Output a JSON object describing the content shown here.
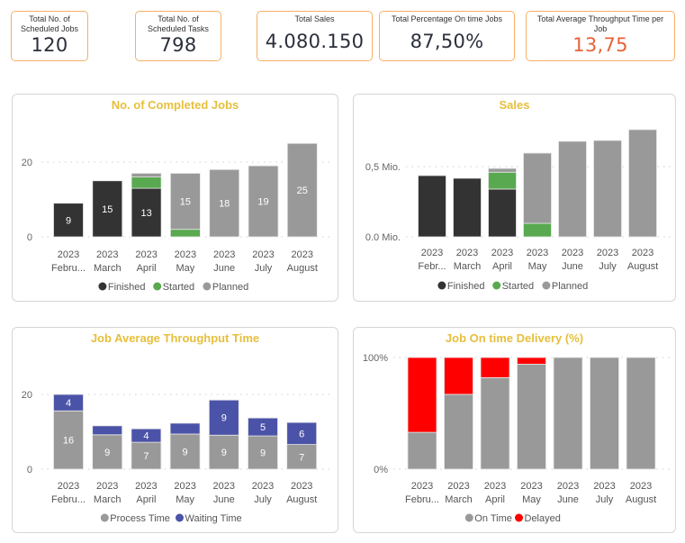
{
  "colors": {
    "accent_title": "#e6bf3c",
    "kpi_border": "#f5b065",
    "kpi_highlight": "#e8623a",
    "finished": "#333333",
    "started": "#58a94f",
    "planned": "#999999",
    "waiting": "#4b53a8",
    "delayed": "#ff0000"
  },
  "kpis": [
    {
      "label": "Total No. of Scheduled Jobs",
      "value": "120"
    },
    {
      "label": "Total No. of Scheduled Tasks",
      "value": "798"
    },
    {
      "label": "Total Sales",
      "value": "4.080.150"
    },
    {
      "label": "Total Percentage On time Jobs",
      "value": "87,50%"
    },
    {
      "label": "Total Average Throughput Time per Job",
      "value": "13,75"
    }
  ],
  "chart_data": [
    {
      "type": "bar",
      "stacked": true,
      "title": "No. of Completed Jobs",
      "categories": [
        [
          "2023",
          "Febru..."
        ],
        [
          "2023",
          "March"
        ],
        [
          "2023",
          "April"
        ],
        [
          "2023",
          "May"
        ],
        [
          "2023",
          "June"
        ],
        [
          "2023",
          "July"
        ],
        [
          "2023",
          "August"
        ]
      ],
      "yticks": [
        {
          "value": 0,
          "label": "0"
        },
        {
          "value": 20,
          "label": "20"
        }
      ],
      "ylim": [
        0,
        26
      ],
      "grid": true,
      "legend": "bottom",
      "series": [
        {
          "name": "Finished",
          "color": "#333333",
          "values": [
            9,
            15,
            13,
            0,
            0,
            0,
            0
          ],
          "labels": [
            "9",
            "15",
            "13",
            null,
            null,
            null,
            null
          ]
        },
        {
          "name": "Started",
          "color": "#58a94f",
          "values": [
            0,
            0,
            3,
            2,
            0,
            0,
            0
          ],
          "labels": [
            null,
            null,
            null,
            null,
            null,
            null,
            null
          ]
        },
        {
          "name": "Planned",
          "color": "#999999",
          "values": [
            0,
            0,
            1,
            15,
            18,
            19,
            25
          ],
          "labels": [
            null,
            null,
            null,
            "15",
            "18",
            "19",
            "25"
          ]
        }
      ]
    },
    {
      "type": "bar",
      "stacked": true,
      "title": "Sales",
      "categories": [
        [
          "2023",
          "Febr..."
        ],
        [
          "2023",
          "March"
        ],
        [
          "2023",
          "April"
        ],
        [
          "2023",
          "May"
        ],
        [
          "2023",
          "June"
        ],
        [
          "2023",
          "July"
        ],
        [
          "2023",
          "August"
        ]
      ],
      "yticks": [
        {
          "value": 0,
          "label": "0.0 Mio."
        },
        {
          "value": 500000,
          "label": "0,5 Mio."
        }
      ],
      "ylim": [
        0,
        800000
      ],
      "grid": true,
      "legend": "bottom",
      "series": [
        {
          "name": "Finished",
          "color": "#333333",
          "values": [
            436000,
            417000,
            340000,
            0,
            0,
            0,
            0
          ]
        },
        {
          "name": "Started",
          "color": "#58a94f",
          "values": [
            0,
            0,
            120000,
            96000,
            0,
            0,
            0
          ]
        },
        {
          "name": "Planned",
          "color": "#999999",
          "values": [
            0,
            0,
            27000,
            500000,
            680000,
            686000,
            763000
          ]
        }
      ]
    },
    {
      "type": "bar",
      "stacked": true,
      "title": "Job Average Throughput Time",
      "categories": [
        [
          "2023",
          "Febru..."
        ],
        [
          "2023",
          "March"
        ],
        [
          "2023",
          "April"
        ],
        [
          "2023",
          "May"
        ],
        [
          "2023",
          "June"
        ],
        [
          "2023",
          "July"
        ],
        [
          "2023",
          "August"
        ]
      ],
      "yticks": [
        {
          "value": 0,
          "label": "0"
        },
        {
          "value": 20,
          "label": "20"
        }
      ],
      "ylim": [
        0,
        26
      ],
      "grid": true,
      "legend": "bottom",
      "series": [
        {
          "name": "Process Time",
          "color": "#999999",
          "values": [
            15.6,
            9.2,
            7.2,
            9.4,
            9.1,
            8.9,
            6.6
          ],
          "labels": [
            "16",
            "9",
            "7",
            "9",
            "9",
            "9",
            "7"
          ]
        },
        {
          "name": "Waiting Time",
          "color": "#4b53a8",
          "values": [
            4.4,
            2.4,
            3.6,
            2.9,
            9.4,
            4.8,
            5.9
          ],
          "labels": [
            "4",
            null,
            "4",
            null,
            "9",
            "5",
            "6"
          ]
        }
      ]
    },
    {
      "type": "bar",
      "stacked": true,
      "title": "Job On time Delivery (%)",
      "categories": [
        [
          "2023",
          "Febru..."
        ],
        [
          "2023",
          "March"
        ],
        [
          "2023",
          "April"
        ],
        [
          "2023",
          "May"
        ],
        [
          "2023",
          "June"
        ],
        [
          "2023",
          "July"
        ],
        [
          "2023",
          "August"
        ]
      ],
      "yticks": [
        {
          "value": 0,
          "label": "0%"
        },
        {
          "value": 100,
          "label": "100%"
        }
      ],
      "ylim": [
        0,
        100
      ],
      "grid": true,
      "legend": "bottom",
      "series": [
        {
          "name": "On Time",
          "color": "#999999",
          "values": [
            33,
            67,
            82,
            94,
            100,
            100,
            100
          ]
        },
        {
          "name": "Delayed",
          "color": "#ff0000",
          "values": [
            67,
            33,
            18,
            6,
            0,
            0,
            0
          ]
        }
      ]
    }
  ]
}
